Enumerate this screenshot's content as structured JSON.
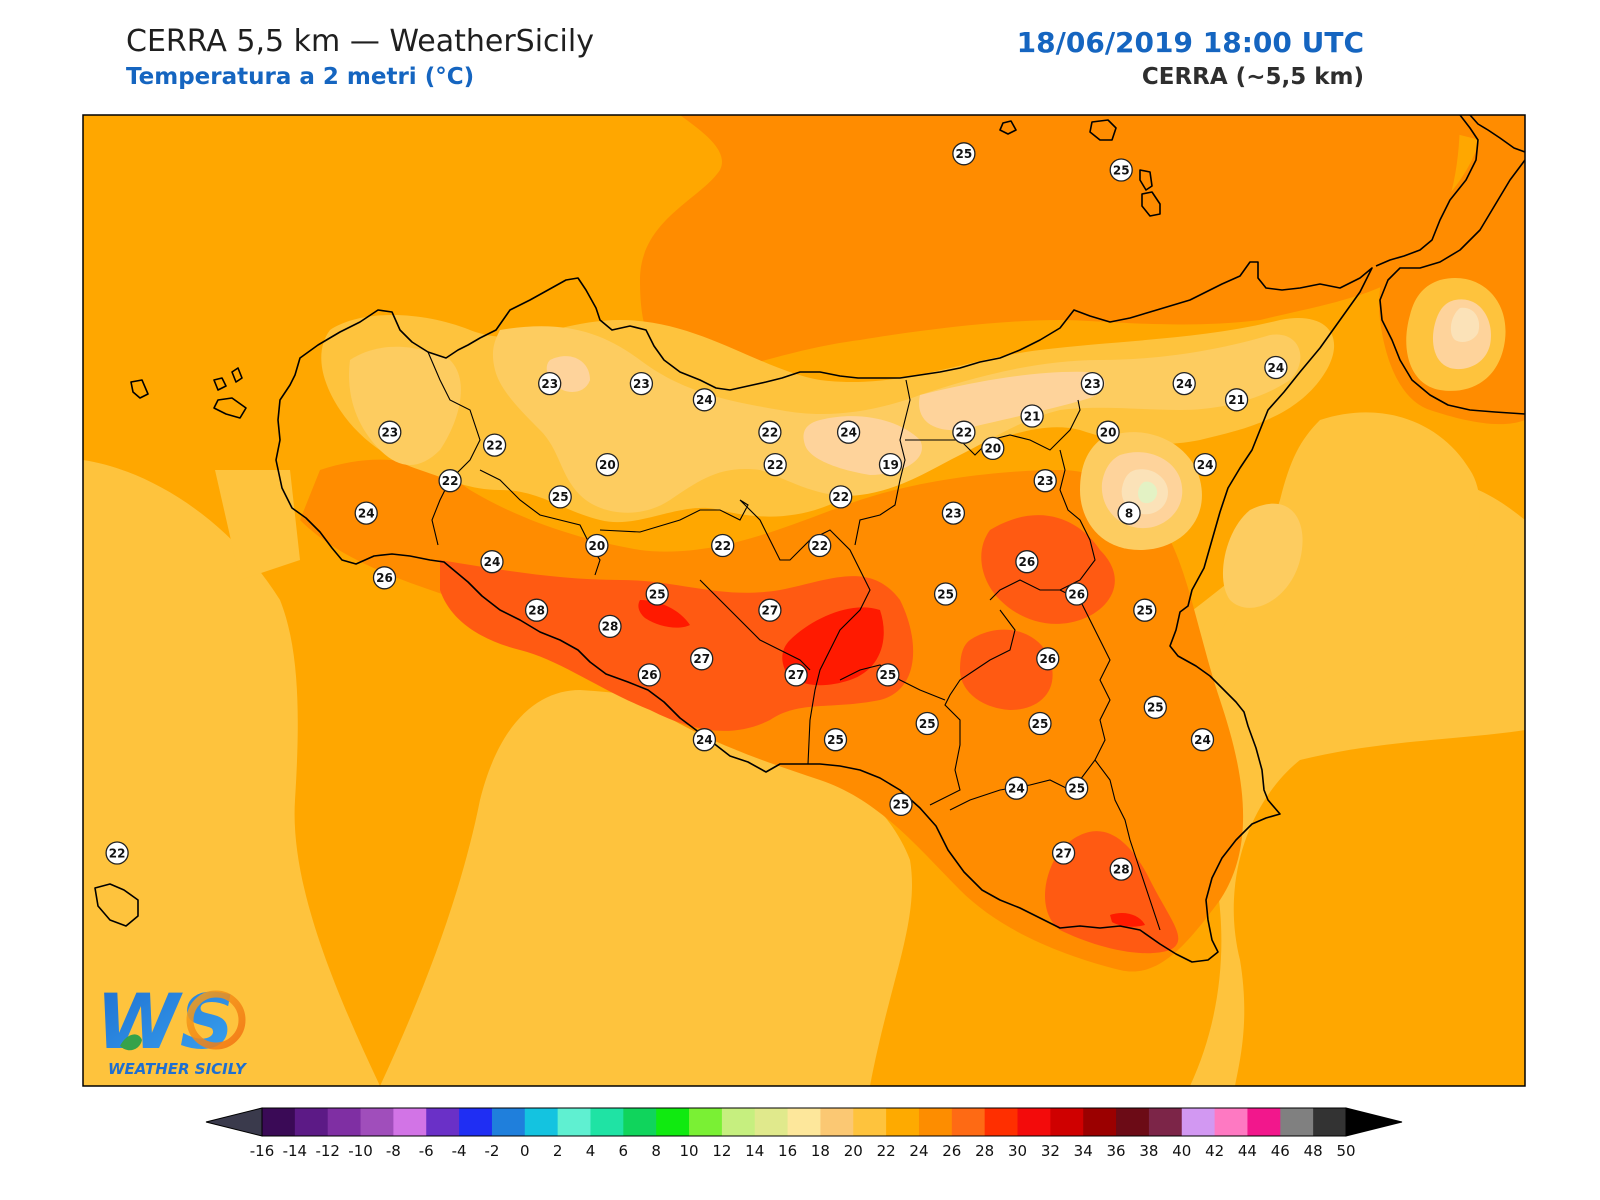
{
  "header": {
    "title": "CERRA 5,5 km — WeatherSicily",
    "subtitle": "Temperatura a 2 metri (°C)",
    "datetime": "18/06/2019 18:00 UTC",
    "model": "CERRA (~5,5 km)"
  },
  "logo": {
    "mark": "WS",
    "name": "WEATHER SICILY"
  },
  "stations": [
    {
      "value": "25",
      "lon": 14.36,
      "lat": 38.88
    },
    {
      "value": "25",
      "lon": 14.96,
      "lat": 38.83
    },
    {
      "value": "23",
      "lon": 12.78,
      "lat": 38.17
    },
    {
      "value": "23",
      "lon": 13.13,
      "lat": 38.17
    },
    {
      "value": "24",
      "lon": 13.37,
      "lat": 38.12
    },
    {
      "value": "23",
      "lon": 12.17,
      "lat": 38.02
    },
    {
      "value": "22",
      "lon": 12.57,
      "lat": 37.98
    },
    {
      "value": "22",
      "lon": 13.62,
      "lat": 38.02
    },
    {
      "value": "24",
      "lon": 13.92,
      "lat": 38.02
    },
    {
      "value": "22",
      "lon": 14.36,
      "lat": 38.02
    },
    {
      "value": "23",
      "lon": 14.85,
      "lat": 38.17
    },
    {
      "value": "24",
      "lon": 15.2,
      "lat": 38.17
    },
    {
      "value": "24",
      "lon": 15.55,
      "lat": 38.22
    },
    {
      "value": "21",
      "lon": 14.62,
      "lat": 38.07
    },
    {
      "value": "21",
      "lon": 15.4,
      "lat": 38.12
    },
    {
      "value": "20",
      "lon": 13.0,
      "lat": 37.92
    },
    {
      "value": "22",
      "lon": 13.64,
      "lat": 37.92
    },
    {
      "value": "19",
      "lon": 14.08,
      "lat": 37.92
    },
    {
      "value": "20",
      "lon": 14.47,
      "lat": 37.97
    },
    {
      "value": "20",
      "lon": 14.91,
      "lat": 38.02
    },
    {
      "value": "22",
      "lon": 12.4,
      "lat": 37.87
    },
    {
      "value": "25",
      "lon": 12.82,
      "lat": 37.82
    },
    {
      "value": "22",
      "lon": 13.89,
      "lat": 37.82
    },
    {
      "value": "23",
      "lon": 14.67,
      "lat": 37.87
    },
    {
      "value": "24",
      "lon": 15.28,
      "lat": 37.92
    },
    {
      "value": "8",
      "lon": 14.99,
      "lat": 37.77
    },
    {
      "value": "23",
      "lon": 14.32,
      "lat": 37.77
    },
    {
      "value": "24",
      "lon": 12.08,
      "lat": 37.77
    },
    {
      "value": "20",
      "lon": 12.96,
      "lat": 37.67
    },
    {
      "value": "22",
      "lon": 13.44,
      "lat": 37.67
    },
    {
      "value": "22",
      "lon": 13.81,
      "lat": 37.67
    },
    {
      "value": "24",
      "lon": 12.56,
      "lat": 37.62
    },
    {
      "value": "26",
      "lon": 14.6,
      "lat": 37.62
    },
    {
      "value": "26",
      "lon": 12.15,
      "lat": 37.57
    },
    {
      "value": "25",
      "lon": 13.19,
      "lat": 37.52
    },
    {
      "value": "25",
      "lon": 14.29,
      "lat": 37.52
    },
    {
      "value": "26",
      "lon": 14.79,
      "lat": 37.52
    },
    {
      "value": "25",
      "lon": 15.05,
      "lat": 37.47
    },
    {
      "value": "28",
      "lon": 12.73,
      "lat": 37.47
    },
    {
      "value": "27",
      "lon": 13.62,
      "lat": 37.47
    },
    {
      "value": "28",
      "lon": 13.01,
      "lat": 37.42
    },
    {
      "value": "27",
      "lon": 13.36,
      "lat": 37.32
    },
    {
      "value": "26",
      "lon": 14.68,
      "lat": 37.32
    },
    {
      "value": "26",
      "lon": 13.16,
      "lat": 37.27
    },
    {
      "value": "27",
      "lon": 13.72,
      "lat": 37.27
    },
    {
      "value": "25",
      "lon": 14.07,
      "lat": 37.27
    },
    {
      "value": "25",
      "lon": 15.09,
      "lat": 37.17
    },
    {
      "value": "25",
      "lon": 14.22,
      "lat": 37.12
    },
    {
      "value": "25",
      "lon": 14.65,
      "lat": 37.12
    },
    {
      "value": "24",
      "lon": 13.37,
      "lat": 37.07
    },
    {
      "value": "25",
      "lon": 13.87,
      "lat": 37.07
    },
    {
      "value": "24",
      "lon": 15.27,
      "lat": 37.07
    },
    {
      "value": "24",
      "lon": 14.56,
      "lat": 36.92
    },
    {
      "value": "25",
      "lon": 14.79,
      "lat": 36.92
    },
    {
      "value": "25",
      "lon": 14.12,
      "lat": 36.87
    },
    {
      "value": "27",
      "lon": 14.74,
      "lat": 36.72
    },
    {
      "value": "28",
      "lon": 14.96,
      "lat": 36.67
    },
    {
      "value": "22",
      "lon": 11.13,
      "lat": 36.72
    }
  ],
  "colorbar": {
    "ticks": [
      "-16",
      "-14",
      "-12",
      "-10",
      "-8",
      "-6",
      "-4",
      "-2",
      "0",
      "2",
      "4",
      "6",
      "8",
      "10",
      "12",
      "14",
      "16",
      "18",
      "20",
      "22",
      "24",
      "26",
      "28",
      "30",
      "32",
      "34",
      "36",
      "38",
      "40",
      "42",
      "44",
      "46",
      "48",
      "50"
    ],
    "colors": [
      "#3a0a56",
      "#5c1a86",
      "#7f2fa3",
      "#a04ebb",
      "#d274e6",
      "#6a30c7",
      "#1f2ef3",
      "#1f7fdc",
      "#14c3e0",
      "#5ff0d1",
      "#1fe3a4",
      "#10d45c",
      "#10ea10",
      "#7af034",
      "#c6ef7f",
      "#e0e98c",
      "#fde79b",
      "#fbc873",
      "#fec33d",
      "#feaa00",
      "#fd8d00",
      "#fe6a14",
      "#ff2f00",
      "#f30b0b",
      "#cf0000",
      "#9b0000",
      "#6c0b16",
      "#7c2548",
      "#d298f2",
      "#fe79c2",
      "#f2178c",
      "#808080",
      "#333333"
    ]
  },
  "palette": {
    "t18": "#fed39b",
    "t20": "#fdcc60",
    "t22": "#fec33d",
    "t24": "#ffa700",
    "t26": "#ff8c00",
    "t28": "#ff5a12",
    "t30": "#ff1a00",
    "coast": "#000000",
    "header_blue": "#1565c0"
  }
}
